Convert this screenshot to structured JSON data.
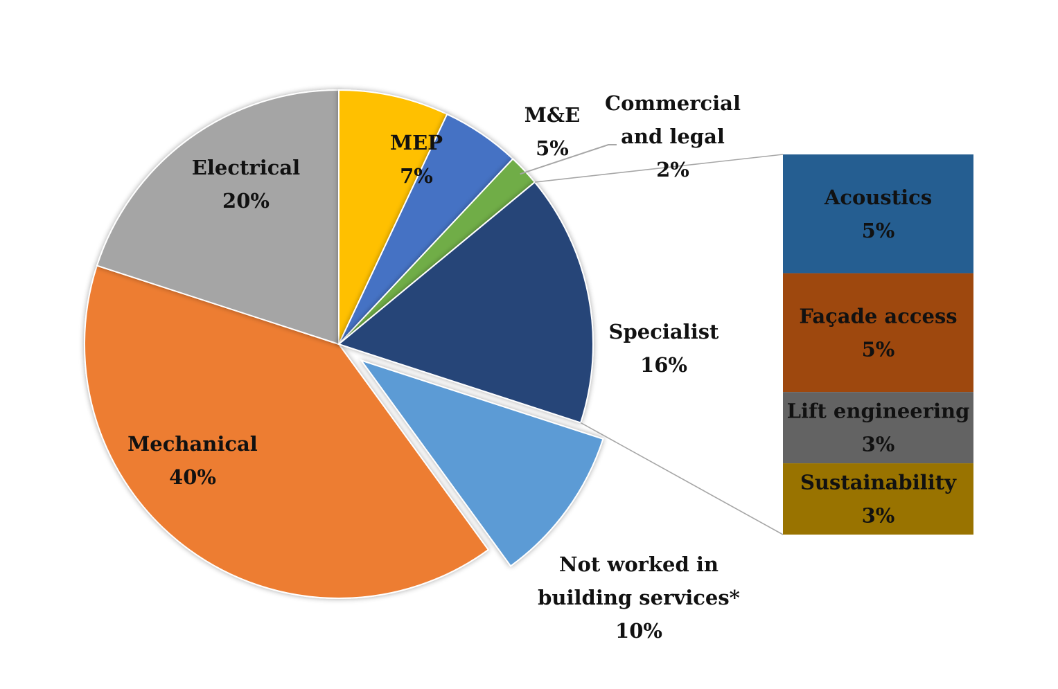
{
  "chart_data": {
    "type": "pie",
    "subtype": "bar-of-pie",
    "title": "",
    "slices": [
      {
        "category": "Mechanical",
        "value": 40,
        "label": "40%",
        "color": "#ED7D31"
      },
      {
        "category": "Electrical",
        "value": 20,
        "label": "20%",
        "color": "#A5A5A5"
      },
      {
        "category": "MEP",
        "value": 7,
        "label": "7%",
        "color": "#FFC000"
      },
      {
        "category": "M&E",
        "value": 5,
        "label": "5%",
        "color": "#4472C4"
      },
      {
        "category": "Commercial and legal",
        "value": 2,
        "label": "2%",
        "color": "#70AD47"
      },
      {
        "category": "Specialist",
        "value": 16,
        "label": "16%",
        "color": "#264478"
      },
      {
        "category": "Not worked in building services*",
        "value": 10,
        "label": "10%",
        "color": "#5B9BD5",
        "exploded": true
      }
    ],
    "breakdown": {
      "of": "Specialist",
      "segments": [
        {
          "category": "Acoustics",
          "value": 5,
          "label": "5%",
          "color": "#255E91"
        },
        {
          "category": "Façade access",
          "value": 5,
          "label": "5%",
          "color": "#9E480E"
        },
        {
          "category": "Lift engineering",
          "value": 3,
          "label": "3%",
          "color": "#636363"
        },
        {
          "category": "Sustainability",
          "value": 3,
          "label": "3%",
          "color": "#997300"
        }
      ]
    },
    "labels": {
      "mechanical": [
        "Mechanical",
        "40%"
      ],
      "electrical": [
        "Electrical",
        "20%"
      ],
      "mep": [
        "MEP",
        "7%"
      ],
      "me": [
        "M&E",
        "5%"
      ],
      "commercial": [
        "Commercial",
        "and legal",
        "2%"
      ],
      "specialist": [
        "Specialist",
        "16%"
      ],
      "not_worked": [
        "Not worked in",
        "building services*",
        "10%"
      ],
      "acoustics": [
        "Acoustics",
        "5%"
      ],
      "facade": [
        "Façade access",
        "5%"
      ],
      "lift": [
        "Lift engineering",
        "3%"
      ],
      "sustainability": [
        "Sustainability",
        "3%"
      ]
    },
    "legend": "none"
  }
}
